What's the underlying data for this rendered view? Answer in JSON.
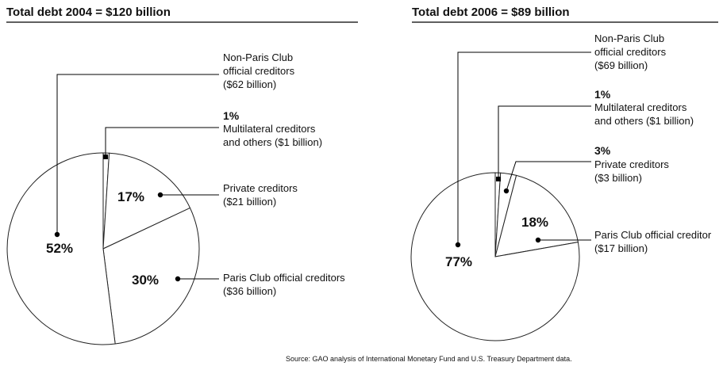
{
  "chart_data": [
    {
      "type": "pie",
      "title": "Total debt 2004 = $120 billion",
      "slices": [
        {
          "name": "Non-Paris Club official creditors",
          "percent": 52,
          "value_billion": 62,
          "pct_text": "52%",
          "label_lines": [
            "Non-Paris Club",
            "official creditors",
            "($62 billion)"
          ]
        },
        {
          "name": "Multilateral creditors and others",
          "percent": 1,
          "value_billion": 1,
          "pct_text": "1%",
          "label_lines": [
            "Multilateral creditors",
            "and others ($1 billion)"
          ]
        },
        {
          "name": "Private creditors",
          "percent": 17,
          "value_billion": 21,
          "pct_text": "17%",
          "label_lines": [
            "Private creditors",
            "($21 billion)"
          ]
        },
        {
          "name": "Paris Club official creditors",
          "percent": 30,
          "value_billion": 36,
          "pct_text": "30%",
          "label_lines": [
            "Paris Club official creditors",
            "($36 billion)"
          ]
        }
      ]
    },
    {
      "type": "pie",
      "title": "Total debt 2006 = $89 billion",
      "slices": [
        {
          "name": "Non-Paris Club official creditors",
          "percent": 77,
          "value_billion": 69,
          "pct_text": "77%",
          "label_lines": [
            "Non-Paris Club",
            "official creditors",
            "($69 billion)"
          ]
        },
        {
          "name": "Multilateral creditors and others",
          "percent": 1,
          "value_billion": 1,
          "pct_text": "1%",
          "label_lines": [
            "Multilateral creditors",
            "and others ($1 billion)"
          ]
        },
        {
          "name": "Private creditors",
          "percent": 3,
          "value_billion": 3,
          "pct_text": "3%",
          "label_lines": [
            "Private creditors",
            "($3 billion)"
          ]
        },
        {
          "name": "Paris Club official creditors",
          "percent": 18,
          "value_billion": 17,
          "pct_text": "18%",
          "label_lines": [
            "Paris Club official creditor",
            "($17 billion)"
          ]
        }
      ]
    }
  ],
  "source": "Source: GAO analysis of International Monetary Fund and U.S. Treasury Department data."
}
